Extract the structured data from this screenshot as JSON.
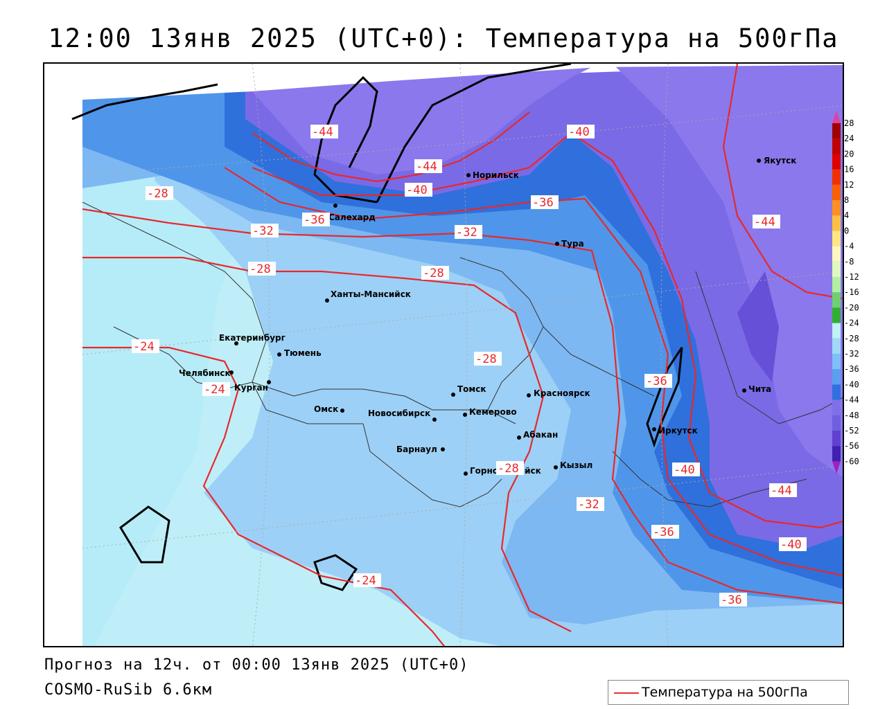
{
  "title": "12:00 13янв 2025 (UTC+0): Температура на 500гПа",
  "forecast_text": "Прогноз на 12ч. от 00:00 13янв 2025 (UTC+0)",
  "model_text": "COSMO-RuSib 6.6км",
  "legend_label": "Температура на 500гПа",
  "colors": {
    "isoline": "#e8282a",
    "coastline": "#000000",
    "border": "#333333"
  },
  "colorbar": {
    "levels": [
      "28",
      "24",
      "20",
      "16",
      "12",
      "8",
      "4",
      "0",
      "-4",
      "-8",
      "-12",
      "-16",
      "-20",
      "-24",
      "-28",
      "-32",
      "-36",
      "-40",
      "-44",
      "-48",
      "-52",
      "-56",
      "-60"
    ],
    "colors": [
      "#a00000",
      "#c00000",
      "#e00000",
      "#f03000",
      "#f86000",
      "#ff9020",
      "#ffc040",
      "#ffe880",
      "#fff8c0",
      "#e0f8c0",
      "#b0f0a0",
      "#70d070",
      "#30b030",
      "#c0f0f8",
      "#a0d8f8",
      "#80c0f8",
      "#5aa0f0",
      "#3070e0",
      "#8070e8",
      "#7060e0",
      "#6040d0",
      "#4020b0",
      "#3010a0"
    ],
    "top_arrow_color": "#e040a0",
    "bottom_arrow_color": "#a020c0"
  },
  "cities": [
    {
      "name": "Норильск"
    },
    {
      "name": "Якутск"
    },
    {
      "name": "Салехард"
    },
    {
      "name": "Тура"
    },
    {
      "name": "Ханты-Мансийск"
    },
    {
      "name": "Екатеринбург"
    },
    {
      "name": "Тюмень"
    },
    {
      "name": "Челябинск"
    },
    {
      "name": "Курган"
    },
    {
      "name": "Омск"
    },
    {
      "name": "Новосибирск"
    },
    {
      "name": "Томск"
    },
    {
      "name": "Кемерово"
    },
    {
      "name": "Красноярск"
    },
    {
      "name": "Барнаул"
    },
    {
      "name": "Абакан"
    },
    {
      "name": "Горно-Алтайск"
    },
    {
      "name": "Кызыл"
    },
    {
      "name": "Иркутск"
    },
    {
      "name": "Чита"
    }
  ],
  "isoline_labels": [
    "-44",
    "-44",
    "-40",
    "-40",
    "-36",
    "-36",
    "-32",
    "-32",
    "-28",
    "-28",
    "-28",
    "-28",
    "-24",
    "-24",
    "-24",
    "-44",
    "-36",
    "-40",
    "-32",
    "-36",
    "-44",
    "-40",
    "-36",
    "-28"
  ]
}
